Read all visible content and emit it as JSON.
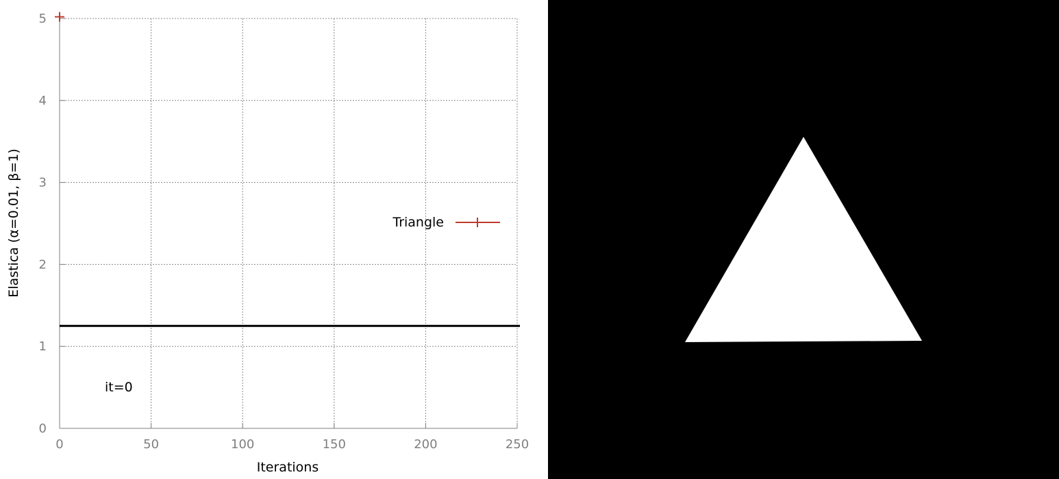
{
  "chart_data": {
    "type": "scatter",
    "title": "",
    "xlabel": "Iterations",
    "ylabel": "Elastica (α=0.01, β=1)",
    "xlim": [
      0,
      250
    ],
    "ylim": [
      0,
      5
    ],
    "xticks": [
      0,
      50,
      100,
      150,
      200,
      250
    ],
    "yticks": [
      0,
      1,
      2,
      3,
      4,
      5
    ],
    "grid": true,
    "legend_position": "right",
    "series": [
      {
        "name": "Triangle",
        "color": "#c0392b",
        "marker": "plus",
        "x": [
          0
        ],
        "y": [
          5.02
        ]
      }
    ],
    "reference_line": {
      "y": 1.25,
      "color": "#000000"
    },
    "annotation": "it=0"
  },
  "side_image": {
    "background": "#000000",
    "shape": "triangle",
    "fill": "#ffffff"
  }
}
